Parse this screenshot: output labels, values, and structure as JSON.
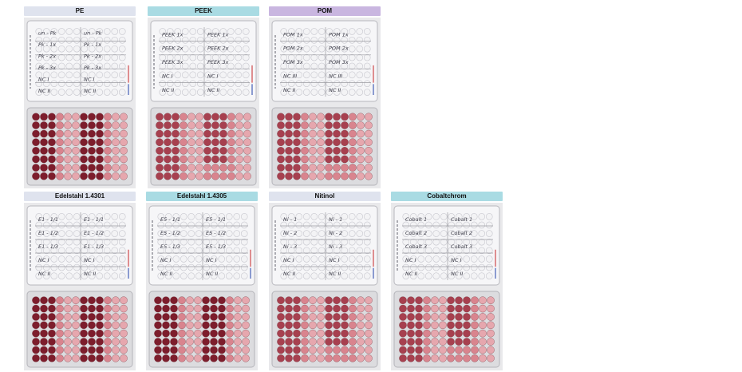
{
  "panels": [
    {
      "label": "PE",
      "label_color": "#dfe3ee",
      "lid": [
        "un - Pk",
        "Pk - 1x",
        "Pk - 2x",
        "Pk - 3x",
        "NC I",
        "NC II"
      ],
      "bottom": "dark"
    },
    {
      "label": "PEEK",
      "label_color": "#a9dbe3",
      "lid": [
        "PEEK 1x",
        "PEEK 2x",
        "PEEK 3x",
        "NC I",
        "NC II"
      ],
      "bottom": "medium"
    },
    {
      "label": "POM",
      "label_color": "#c9b6e0",
      "lid": [
        "POM 1x",
        "POM 2x",
        "POM 3x",
        "NC III",
        "NC II"
      ],
      "bottom": "medium"
    },
    {
      "label": "Edelstahl 1.4301",
      "label_color": "#dfe3ee",
      "lid": [
        "E1 - 1/1",
        "E1 - 1/2",
        "E1 - 1/3",
        "NC I",
        "NC II"
      ],
      "bottom": "dark"
    },
    {
      "label": "Edelstahl 1.4305",
      "label_color": "#a9dbe3",
      "lid": [
        "E5 - 1/1",
        "E5 - 1/2",
        "E5 - 1/3",
        "NC I",
        "NC II"
      ],
      "bottom": "dark"
    },
    {
      "label": "Nitinol",
      "label_color": "#dfe3ee",
      "lid": [
        "Ni - 1",
        "Ni - 2",
        "Ni - 3",
        "NC I",
        "NC II"
      ],
      "bottom": "medium"
    },
    {
      "label": "Cobaltchrom",
      "label_color": "#a9dbe3",
      "lid": [
        "Cobalt 1",
        "Cobalt 2",
        "Cobalt 3",
        "NC I",
        "NC II"
      ],
      "bottom": "medium"
    }
  ],
  "colors": {
    "well_dark": "#7d1d2c",
    "well_medium": "#a7404f",
    "well_pink": "#d9848e",
    "well_light": "#e6a7ae",
    "lid_well": "#f3f3f5",
    "lid_grid": "#9a9aa0",
    "plate_bg": "#dcdcdf",
    "ink": "#3a3a46",
    "ink_red": "#cc3b3b",
    "ink_blue": "#3451b0"
  }
}
